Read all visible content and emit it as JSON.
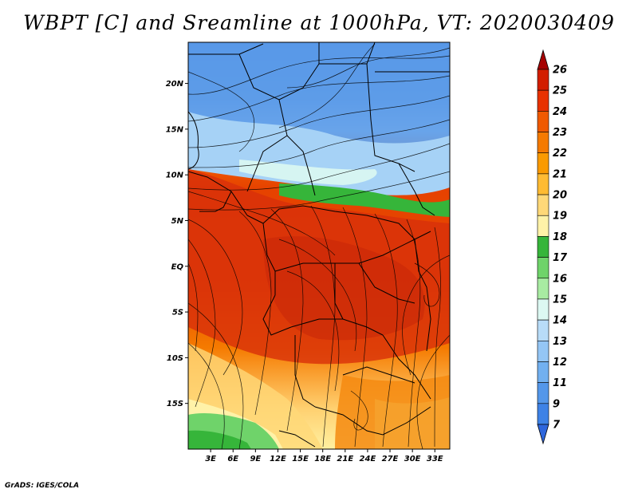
{
  "title": "WBPT [C] and Sreamline at 1000hPa, VT: 2020030409",
  "credit": "GrADS: IGES/COLA",
  "map": {
    "lon_range": [
      0,
      35
    ],
    "lat_range": [
      -20,
      24.5
    ],
    "lat_ticks": [
      {
        "value": 20,
        "label": "20N"
      },
      {
        "value": 15,
        "label": "15N"
      },
      {
        "value": 10,
        "label": "10N"
      },
      {
        "value": 5,
        "label": "5N"
      },
      {
        "value": 0,
        "label": "EQ"
      },
      {
        "value": -5,
        "label": "5S"
      },
      {
        "value": -10,
        "label": "10S"
      },
      {
        "value": -15,
        "label": "15S"
      }
    ],
    "lon_ticks": [
      {
        "value": 3,
        "label": "3E"
      },
      {
        "value": 6,
        "label": "6E"
      },
      {
        "value": 9,
        "label": "9E"
      },
      {
        "value": 12,
        "label": "12E"
      },
      {
        "value": 15,
        "label": "15E"
      },
      {
        "value": 18,
        "label": "18E"
      },
      {
        "value": 21,
        "label": "21E"
      },
      {
        "value": 24,
        "label": "24E"
      },
      {
        "value": 27,
        "label": "27E"
      },
      {
        "value": 30,
        "label": "30E"
      },
      {
        "value": 33,
        "label": "33E"
      }
    ]
  },
  "colorbar": {
    "labels": [
      "26",
      "25",
      "24",
      "23",
      "22",
      "21",
      "20",
      "19",
      "18",
      "17",
      "16",
      "15",
      "14",
      "13",
      "12",
      "11",
      "9",
      "7"
    ],
    "colors": [
      "#d21e00",
      "#e83200",
      "#f05a00",
      "#f57a00",
      "#fa9a00",
      "#ffbb33",
      "#ffd878",
      "#fff2a8",
      "#36b53a",
      "#6fd36a",
      "#a8eba2",
      "#dcf8f2",
      "#b8dcf8",
      "#94c6f5",
      "#72b0f0",
      "#5497ea",
      "#3e82e6"
    ],
    "max_triangle_color": "#a60000",
    "min_triangle_color": "#2e66dc"
  }
}
